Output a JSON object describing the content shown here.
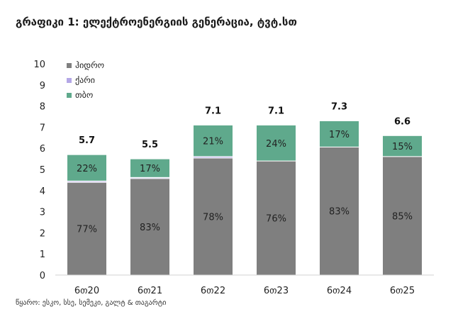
{
  "title": "გრაფიკი 1: ელექტროენერგიის გენერაცია, ტვტ.სთ",
  "source": "წყარო: ესკო, სსე, სემეკი, გალტ & თაგარტი",
  "colors": {
    "hydro": "#7f7f7f",
    "wind": "#b4a7e6",
    "thermal": "#5fa98c"
  },
  "chart_data": {
    "type": "bar",
    "stacked": true,
    "categories": [
      "6თ20",
      "6თ21",
      "6თ22",
      "6თ23",
      "6თ24",
      "6თ25"
    ],
    "series": [
      {
        "name": "ჰიდრო",
        "key": "hydro",
        "values": [
          4.39,
          4.57,
          5.54,
          5.4,
          6.06,
          5.61
        ],
        "labels": [
          "77%",
          "83%",
          "78%",
          "76%",
          "83%",
          "85%"
        ]
      },
      {
        "name": "ქარი",
        "key": "wind",
        "values": [
          0.06,
          0.05,
          0.07,
          0.0,
          0.0,
          0.0
        ],
        "labels": [
          "",
          "",
          "",
          "",
          "",
          ""
        ]
      },
      {
        "name": "თბო",
        "key": "thermal",
        "values": [
          1.25,
          0.88,
          1.49,
          1.7,
          1.24,
          0.99
        ],
        "labels": [
          "22%",
          "17%",
          "21%",
          "24%",
          "17%",
          "15%"
        ]
      }
    ],
    "totals": [
      "5.7",
      "5.5",
      "7.1",
      "7.1",
      "7.3",
      "6.6"
    ],
    "ylim": [
      0,
      10
    ],
    "yticks": [
      "0",
      "1",
      "2",
      "3",
      "4",
      "5",
      "6",
      "7",
      "8",
      "9",
      "10"
    ],
    "legend_position": "top-left",
    "grid": false
  }
}
